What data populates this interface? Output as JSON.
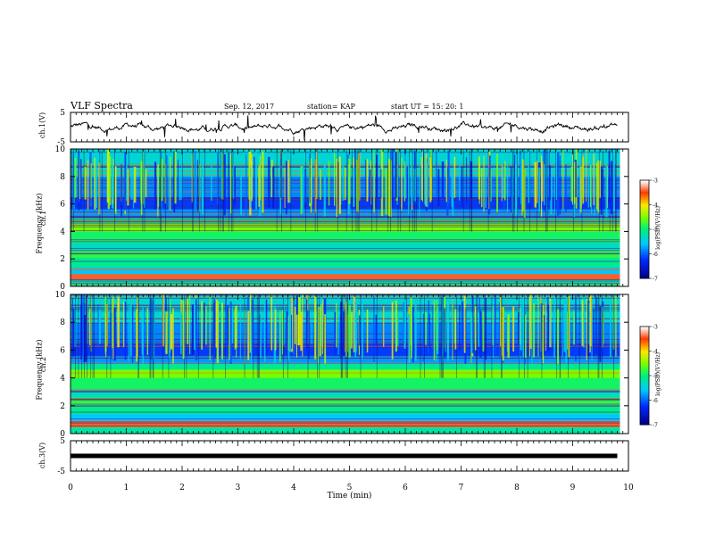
{
  "header": {
    "title": "VLF Spectra",
    "date": "Sep. 12, 2017",
    "station": "station= KAP",
    "start": "start  UT =   15: 20: 1"
  },
  "chart_data": [
    {
      "type": "line",
      "panel": "ch1-waveform",
      "ylabel": "ch.1(V)",
      "ylim": [
        -5,
        5
      ],
      "yticks": [
        "5",
        "-5"
      ],
      "xlim": [
        0,
        10
      ],
      "note": "noisy waveform around 0 V"
    },
    {
      "type": "heatmap",
      "panel": "ch1-spectrogram",
      "ylabel": "ch.1",
      "ylabel2": "Frequency  (kHz)",
      "ylim": [
        0,
        10
      ],
      "yticks": [
        "0",
        "2",
        "4",
        "6",
        "8",
        "10"
      ],
      "xlim": [
        0,
        10
      ],
      "colorbar": {
        "label": "log(PSD)(V²/Hz)",
        "range": [
          -7,
          -3
        ],
        "ticks": [
          "-3",
          "-4",
          "-5",
          "-6",
          "-7"
        ]
      }
    },
    {
      "type": "heatmap",
      "panel": "ch2-spectrogram",
      "ylabel": "ch.2",
      "ylabel2": "Frequency  (kHz)",
      "ylim": [
        0,
        10
      ],
      "yticks": [
        "0",
        "2",
        "4",
        "6",
        "8",
        "10"
      ],
      "xlim": [
        0,
        10
      ],
      "colorbar": {
        "label": "log(PSD)(V²/Hz)",
        "range": [
          -7,
          -3
        ],
        "ticks": [
          "-3",
          "-4",
          "-5",
          "-6",
          "-7"
        ]
      }
    },
    {
      "type": "line",
      "panel": "ch3-waveform",
      "ylabel": "ch.3(V)",
      "ylim": [
        -5,
        5
      ],
      "yticks": [
        "5",
        "-5"
      ],
      "xlim": [
        0,
        10
      ],
      "xlabel": "Time  (min)",
      "xticks": [
        "0",
        "1",
        "2",
        "3",
        "4",
        "5",
        "6",
        "7",
        "8",
        "9",
        "10"
      ],
      "series": [
        {
          "x": [
            0,
            9.8
          ],
          "y": [
            0,
            0
          ]
        }
      ]
    }
  ]
}
